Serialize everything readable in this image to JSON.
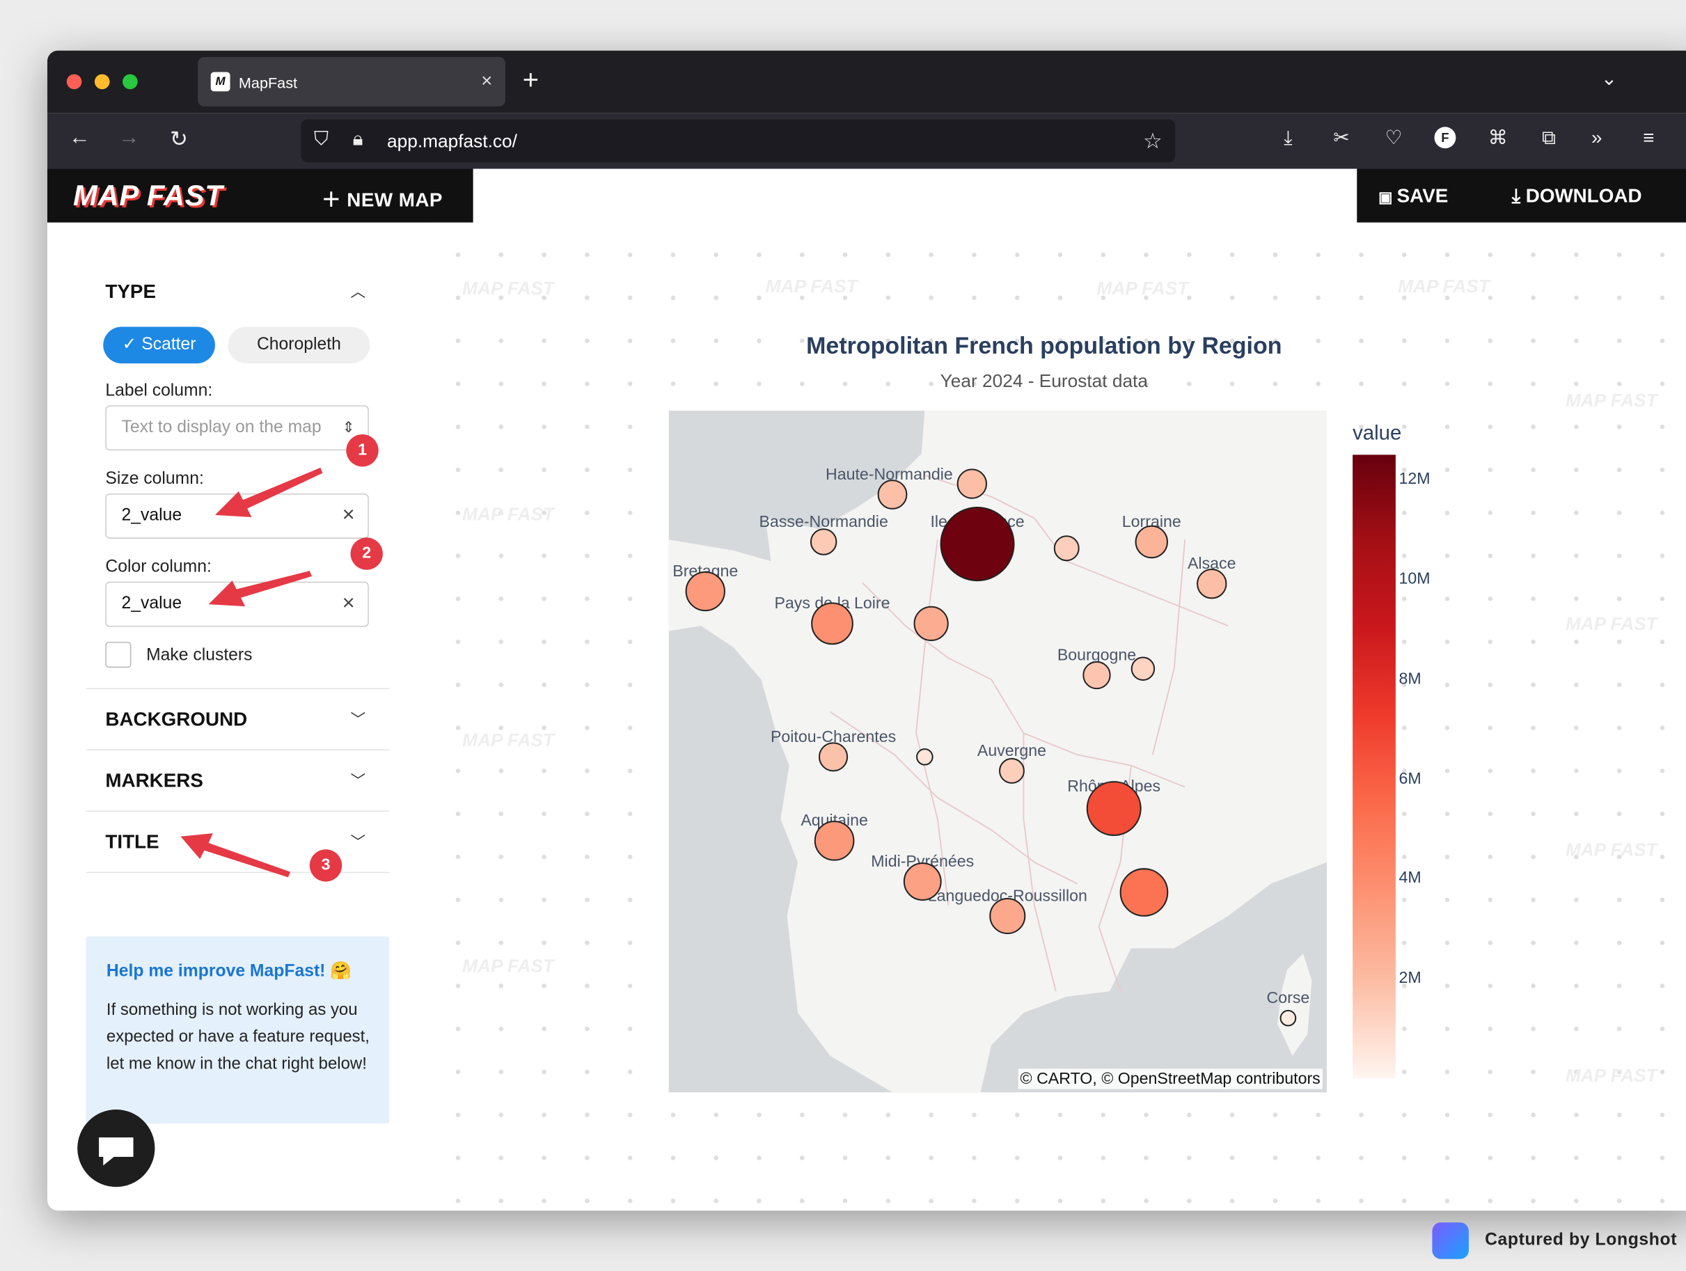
{
  "browser": {
    "tab_title": "MapFast",
    "url_domain": "app.mapfast.co/",
    "url_rest": "",
    "tab_close": "×",
    "new_tab": "+"
  },
  "app": {
    "logo": "MAP FAST",
    "new_map_label": "NEW MAP",
    "save_label": "SAVE",
    "download_label": "DOWNLOAD"
  },
  "sidebar": {
    "type_title": "TYPE",
    "scatter_label": "Scatter",
    "choropleth_label": "Choropleth",
    "label_column_label": "Label column:",
    "label_column_placeholder": "Text to display on the map",
    "size_column_label": "Size column:",
    "size_column_value": "2_value",
    "color_column_label": "Color column:",
    "color_column_value": "2_value",
    "make_clusters_label": "Make clusters",
    "background_title": "BACKGROUND",
    "markers_title": "MARKERS",
    "title_title": "TITLE",
    "help_title": "Help me improve MapFast! 🤗",
    "help_body": "If something is not working as you expected or have a feature request, let me know in the chat right below!"
  },
  "annotations": [
    "1",
    "2",
    "3"
  ],
  "watermark": "MAP FAST",
  "map": {
    "title": "Metropolitan French population by Region",
    "subtitle": "Year 2024 - Eurostat data",
    "attribution": "© CARTO, © OpenStreetMap contributors",
    "legend_title": "value",
    "legend_ticks": [
      "12M",
      "10M",
      "8M",
      "6M",
      "4M",
      "2M"
    ],
    "colors": {
      "land": "#f4f4f3",
      "water": "#d6d9dc",
      "border": "#e8c9c9",
      "marker_stroke": "#222222"
    }
  },
  "footer": {
    "captured_by": "Captured by Longshot"
  },
  "chart_data": {
    "type": "scatter",
    "title": "Metropolitan French population by Region",
    "subtitle": "Year 2024 - Eurostat data",
    "color_scale": "Reds",
    "colorbar_title": "value",
    "colorbar_range": [
      0,
      12500000
    ],
    "points": [
      {
        "label": "Haute-Normandie",
        "value": 1850000
      },
      {
        "label": "",
        "value": 1900000
      },
      {
        "label": "Ile de France",
        "value": 12300000
      },
      {
        "label": "Basse-Normandie",
        "value": 1480000
      },
      {
        "label": "Lorraine",
        "value": 2300000
      },
      {
        "label": "",
        "value": 1350000
      },
      {
        "label": "Alsace",
        "value": 1900000
      },
      {
        "label": "Bretagne",
        "value": 3400000
      },
      {
        "label": "Pays de la Loire",
        "value": 3850000
      },
      {
        "label": "",
        "value": 2600000
      },
      {
        "label": "Bourgogne",
        "value": 1640000
      },
      {
        "label": "",
        "value": 1180000
      },
      {
        "label": "Poitou-Charentes",
        "value": 1800000
      },
      {
        "label": "",
        "value": 560000
      },
      {
        "label": "Auvergne",
        "value": 1360000
      },
      {
        "label": "Rhône-Alpes",
        "value": 6600000
      },
      {
        "label": "Aquitaine",
        "value": 3450000
      },
      {
        "label": "Midi-Pyrénées",
        "value": 3100000
      },
      {
        "label": "Languedoc-Roussillon",
        "value": 2800000
      },
      {
        "label": "",
        "value": 5100000
      },
      {
        "label": "Corse",
        "value": 350000
      }
    ]
  }
}
